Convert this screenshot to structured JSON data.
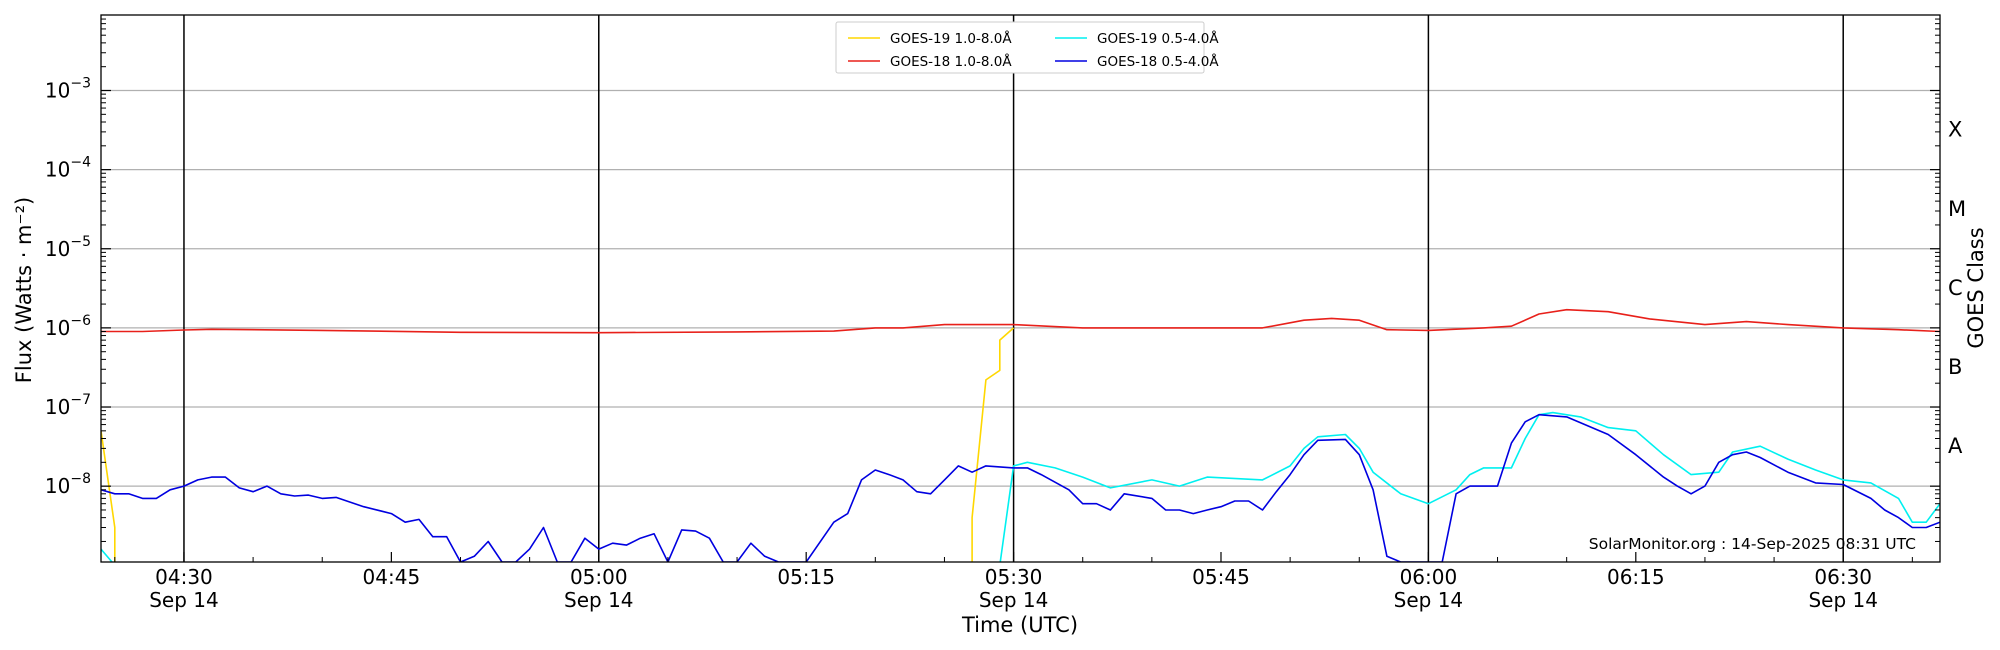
{
  "chart_data": {
    "type": "line",
    "xlabel": "Time (UTC)",
    "ylabel": "Flux (Watts · m⁻²)",
    "ylabel_right": "GOES Class",
    "y_scale": "log",
    "ylim": [
      1.1e-09,
      0.009
    ],
    "xlim": [
      "04:24",
      "06:37"
    ],
    "grid": "horizontal",
    "legend_position": "top-center",
    "x_ticks": [
      {
        "t": "04:30",
        "label": "04:30",
        "date": "Sep 14"
      },
      {
        "t": "04:45",
        "label": "04:45",
        "date": ""
      },
      {
        "t": "05:00",
        "label": "05:00",
        "date": "Sep 14"
      },
      {
        "t": "05:15",
        "label": "05:15",
        "date": ""
      },
      {
        "t": "05:30",
        "label": "05:30",
        "date": "Sep 14"
      },
      {
        "t": "05:45",
        "label": "05:45",
        "date": ""
      },
      {
        "t": "06:00",
        "label": "06:00",
        "date": "Sep 14"
      },
      {
        "t": "06:15",
        "label": "06:15",
        "date": ""
      },
      {
        "t": "06:30",
        "label": "06:30",
        "date": "Sep 14"
      }
    ],
    "vertical_lines": [
      "04:30",
      "05:00",
      "05:30",
      "06:00",
      "06:30"
    ],
    "y_ticks": [
      {
        "value": 1e-08,
        "base": "10",
        "exp": "−8"
      },
      {
        "value": 1e-07,
        "base": "10",
        "exp": "−7"
      },
      {
        "value": 1e-06,
        "base": "10",
        "exp": "−6"
      },
      {
        "value": 1e-05,
        "base": "10",
        "exp": "−5"
      },
      {
        "value": 0.0001,
        "base": "10",
        "exp": "−4"
      },
      {
        "value": 0.001,
        "base": "10",
        "exp": "−3"
      }
    ],
    "goes_classes": [
      {
        "label": "A",
        "value": 3.2e-08
      },
      {
        "label": "B",
        "value": 3.2e-07
      },
      {
        "label": "C",
        "value": 3.2e-06
      },
      {
        "label": "M",
        "value": 3.2e-05
      },
      {
        "label": "X",
        "value": 0.00032
      }
    ],
    "annotation": "SolarMonitor.org : 14-Sep-2025 08:31 UTC",
    "series": [
      {
        "name": "GOES-19 1.0-8.0Å",
        "color": "#ffd700",
        "points": [
          [
            "04:24",
            5e-08
          ],
          [
            "04:25",
            3e-09
          ],
          [
            "04:25",
            1e-09
          ],
          [
            "05:27",
            1e-09
          ],
          [
            "05:27",
            4e-09
          ],
          [
            "05:28",
            2.2e-07
          ],
          [
            "05:29",
            2.9e-07
          ],
          [
            "05:29",
            7e-07
          ],
          [
            "05:30",
            1e-06
          ]
        ]
      },
      {
        "name": "GOES-18 1.0-8.0Å",
        "color": "#e8201a",
        "points": [
          [
            "04:24",
            9e-07
          ],
          [
            "04:27",
            9e-07
          ],
          [
            "04:30",
            9.4e-07
          ],
          [
            "04:32",
            9.6e-07
          ],
          [
            "04:40",
            9.3e-07
          ],
          [
            "04:50",
            8.8e-07
          ],
          [
            "05:00",
            8.7e-07
          ],
          [
            "05:10",
            8.9e-07
          ],
          [
            "05:17",
            9.1e-07
          ],
          [
            "05:20",
            1e-06
          ],
          [
            "05:22",
            1e-06
          ],
          [
            "05:25",
            1.1e-06
          ],
          [
            "05:28",
            1.1e-06
          ],
          [
            "05:30",
            1.1e-06
          ],
          [
            "05:35",
            1e-06
          ],
          [
            "05:40",
            1e-06
          ],
          [
            "05:48",
            1e-06
          ],
          [
            "05:51",
            1.25e-06
          ],
          [
            "05:53",
            1.32e-06
          ],
          [
            "05:55",
            1.25e-06
          ],
          [
            "05:57",
            9.5e-07
          ],
          [
            "06:00",
            9.3e-07
          ],
          [
            "06:04",
            1e-06
          ],
          [
            "06:06",
            1.05e-06
          ],
          [
            "06:08",
            1.5e-06
          ],
          [
            "06:10",
            1.7e-06
          ],
          [
            "06:13",
            1.6e-06
          ],
          [
            "06:16",
            1.3e-06
          ],
          [
            "06:20",
            1.1e-06
          ],
          [
            "06:23",
            1.2e-06
          ],
          [
            "06:26",
            1.1e-06
          ],
          [
            "06:30",
            1e-06
          ],
          [
            "06:34",
            9.5e-07
          ],
          [
            "06:37",
            9e-07
          ]
        ]
      },
      {
        "name": "GOES-19 0.5-4.0Å",
        "color": "#00f0f0",
        "points": [
          [
            "04:24",
            1.6e-09
          ],
          [
            "04:25",
            1e-09
          ],
          [
            "05:29",
            1e-09
          ],
          [
            "05:30",
            1.8e-08
          ],
          [
            "05:31",
            2e-08
          ],
          [
            "05:33",
            1.7e-08
          ],
          [
            "05:35",
            1.3e-08
          ],
          [
            "05:37",
            9.5e-09
          ],
          [
            "05:40",
            1.2e-08
          ],
          [
            "05:42",
            1e-08
          ],
          [
            "05:44",
            1.3e-08
          ],
          [
            "05:48",
            1.2e-08
          ],
          [
            "05:50",
            1.8e-08
          ],
          [
            "05:51",
            3e-08
          ],
          [
            "05:52",
            4.2e-08
          ],
          [
            "05:54",
            4.5e-08
          ],
          [
            "05:55",
            3e-08
          ],
          [
            "05:56",
            1.5e-08
          ],
          [
            "05:58",
            8e-09
          ],
          [
            "06:00",
            6e-09
          ],
          [
            "06:02",
            9e-09
          ],
          [
            "06:03",
            1.4e-08
          ],
          [
            "06:04",
            1.7e-08
          ],
          [
            "06:06",
            1.7e-08
          ],
          [
            "06:07",
            4e-08
          ],
          [
            "06:08",
            8e-08
          ],
          [
            "06:09",
            8.5e-08
          ],
          [
            "06:11",
            7.5e-08
          ],
          [
            "06:13",
            5.5e-08
          ],
          [
            "06:15",
            5e-08
          ],
          [
            "06:17",
            2.5e-08
          ],
          [
            "06:19",
            1.4e-08
          ],
          [
            "06:21",
            1.5e-08
          ],
          [
            "06:22",
            2.7e-08
          ],
          [
            "06:24",
            3.2e-08
          ],
          [
            "06:26",
            2.2e-08
          ],
          [
            "06:28",
            1.6e-08
          ],
          [
            "06:30",
            1.2e-08
          ],
          [
            "06:32",
            1.1e-08
          ],
          [
            "06:34",
            7e-09
          ],
          [
            "06:35",
            3.5e-09
          ],
          [
            "06:36",
            3.5e-09
          ],
          [
            "06:37",
            6e-09
          ]
        ]
      },
      {
        "name": "GOES-18 0.5-4.0Å",
        "color": "#0000e0",
        "points": [
          [
            "04:24",
            9e-09
          ],
          [
            "04:25",
            8e-09
          ],
          [
            "04:26",
            8e-09
          ],
          [
            "04:27",
            7e-09
          ],
          [
            "04:28",
            7e-09
          ],
          [
            "04:29",
            9e-09
          ],
          [
            "04:30",
            1e-08
          ],
          [
            "04:31",
            1.2e-08
          ],
          [
            "04:32",
            1.3e-08
          ],
          [
            "04:33",
            1.3e-08
          ],
          [
            "04:34",
            9.5e-09
          ],
          [
            "04:35",
            8.5e-09
          ],
          [
            "04:36",
            1e-08
          ],
          [
            "04:37",
            8e-09
          ],
          [
            "04:38",
            7.5e-09
          ],
          [
            "04:39",
            7.7e-09
          ],
          [
            "04:40",
            7e-09
          ],
          [
            "04:41",
            7.2e-09
          ],
          [
            "04:43",
            5.5e-09
          ],
          [
            "04:45",
            4.5e-09
          ],
          [
            "04:46",
            3.5e-09
          ],
          [
            "04:47",
            3.8e-09
          ],
          [
            "04:48",
            2.3e-09
          ],
          [
            "04:49",
            2.3e-09
          ],
          [
            "04:50",
            1.1e-09
          ],
          [
            "04:51",
            1.3e-09
          ],
          [
            "04:52",
            2e-09
          ],
          [
            "04:53",
            1.1e-09
          ],
          [
            "04:54",
            1.1e-09
          ],
          [
            "04:55",
            1.6e-09
          ],
          [
            "04:56",
            3e-09
          ],
          [
            "04:57",
            1.1e-09
          ],
          [
            "04:58",
            1.1e-09
          ],
          [
            "04:59",
            2.2e-09
          ],
          [
            "05:00",
            1.6e-09
          ],
          [
            "05:01",
            1.9e-09
          ],
          [
            "05:02",
            1.8e-09
          ],
          [
            "05:03",
            2.2e-09
          ],
          [
            "05:04",
            2.5e-09
          ],
          [
            "05:05",
            1.1e-09
          ],
          [
            "05:06",
            2.8e-09
          ],
          [
            "05:07",
            2.7e-09
          ],
          [
            "05:08",
            2.2e-09
          ],
          [
            "05:09",
            1.1e-09
          ],
          [
            "05:10",
            1.1e-09
          ],
          [
            "05:11",
            1.9e-09
          ],
          [
            "05:12",
            1.3e-09
          ],
          [
            "05:13",
            1.1e-09
          ],
          [
            "05:15",
            1.1e-09
          ],
          [
            "05:17",
            3.5e-09
          ],
          [
            "05:18",
            4.5e-09
          ],
          [
            "05:19",
            1.2e-08
          ],
          [
            "05:20",
            1.6e-08
          ],
          [
            "05:21",
            1.4e-08
          ],
          [
            "05:22",
            1.2e-08
          ],
          [
            "05:23",
            8.5e-09
          ],
          [
            "05:24",
            8e-09
          ],
          [
            "05:25",
            1.2e-08
          ],
          [
            "05:26",
            1.8e-08
          ],
          [
            "05:27",
            1.5e-08
          ],
          [
            "05:28",
            1.8e-08
          ],
          [
            "05:30",
            1.7e-08
          ],
          [
            "05:31",
            1.7e-08
          ],
          [
            "05:32",
            1.4e-08
          ],
          [
            "05:34",
            9e-09
          ],
          [
            "05:35",
            6e-09
          ],
          [
            "05:36",
            6e-09
          ],
          [
            "05:37",
            5e-09
          ],
          [
            "05:38",
            8e-09
          ],
          [
            "05:40",
            7e-09
          ],
          [
            "05:41",
            5e-09
          ],
          [
            "05:42",
            5e-09
          ],
          [
            "05:43",
            4.5e-09
          ],
          [
            "05:44",
            5e-09
          ],
          [
            "05:45",
            5.5e-09
          ],
          [
            "05:46",
            6.5e-09
          ],
          [
            "05:47",
            6.5e-09
          ],
          [
            "05:48",
            5e-09
          ],
          [
            "05:49",
            8.5e-09
          ],
          [
            "05:50",
            1.4e-08
          ],
          [
            "05:51",
            2.5e-08
          ],
          [
            "05:52",
            3.8e-08
          ],
          [
            "05:54",
            3.9e-08
          ],
          [
            "05:55",
            2.5e-08
          ],
          [
            "05:56",
            9e-09
          ],
          [
            "05:57",
            1.3e-09
          ],
          [
            "05:58",
            1.1e-09
          ],
          [
            "06:01",
            1.1e-09
          ],
          [
            "06:02",
            8e-09
          ],
          [
            "06:03",
            1e-08
          ],
          [
            "06:05",
            1e-08
          ],
          [
            "06:06",
            3.5e-08
          ],
          [
            "06:07",
            6.5e-08
          ],
          [
            "06:08",
            8e-08
          ],
          [
            "06:10",
            7.5e-08
          ],
          [
            "06:13",
            4.5e-08
          ],
          [
            "06:15",
            2.5e-08
          ],
          [
            "06:17",
            1.3e-08
          ],
          [
            "06:18",
            1e-08
          ],
          [
            "06:19",
            8e-09
          ],
          [
            "06:20",
            1e-08
          ],
          [
            "06:21",
            2e-08
          ],
          [
            "06:22",
            2.5e-08
          ],
          [
            "06:23",
            2.7e-08
          ],
          [
            "06:24",
            2.3e-08
          ],
          [
            "06:26",
            1.5e-08
          ],
          [
            "06:28",
            1.1e-08
          ],
          [
            "06:30",
            1.05e-08
          ],
          [
            "06:32",
            7e-09
          ],
          [
            "06:33",
            5e-09
          ],
          [
            "06:34",
            4e-09
          ],
          [
            "06:35",
            3e-09
          ],
          [
            "06:36",
            3e-09
          ],
          [
            "06:37",
            3.5e-09
          ]
        ]
      }
    ]
  }
}
